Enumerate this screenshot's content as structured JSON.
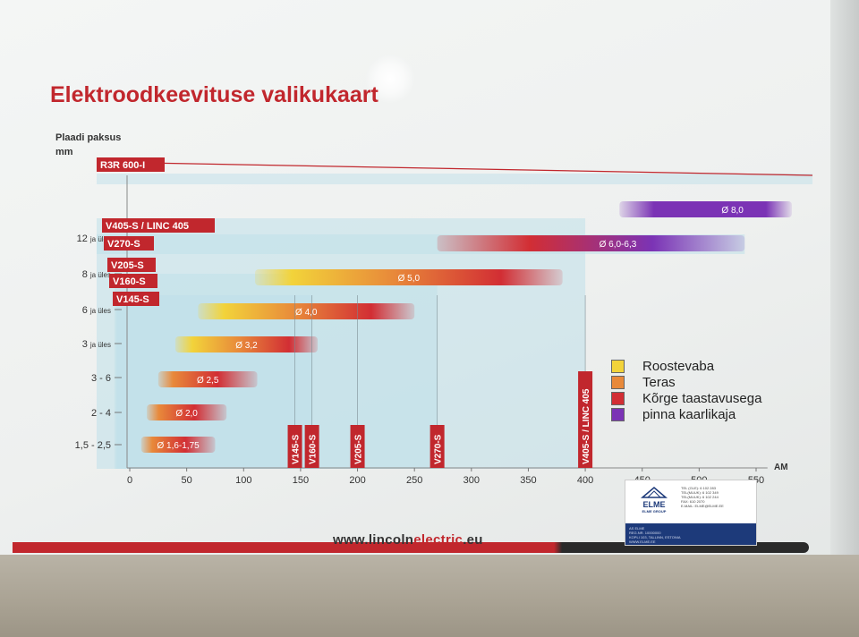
{
  "title": "Elektroodkeevituse valikukaart",
  "y_axis_label": [
    "Plaadi paksus",
    "mm"
  ],
  "url": {
    "prefix": "www.lincoln",
    "highlight": "electric",
    "suffix": ".eu"
  },
  "badge": {
    "brand": "ELME",
    "subtitle": "ELME GROUP",
    "contact_lines": [
      "TEL (GLE): 6 102 283",
      "TEL(MUUK): 6 102 349",
      "TEL(MUUK): 6 102 244",
      "FAX: 610 2070",
      "E-MAIL: ELME@ELME.EE"
    ],
    "footer_lines": [
      "AS ELME",
      "REG.NR. 10000000",
      "KOPLI 103, TALLINN, ESTONIA",
      "WWW.ELME.EE"
    ]
  },
  "colors": {
    "brand_red": "#c1272d",
    "roostevaba": "#f2d33a",
    "teras": "#e8893a",
    "korge": "#d22e34",
    "pinna": "#7b33b5",
    "band_blue": "#bfe0ea"
  },
  "chart_data": {
    "type": "bar",
    "title": "Elektroodkeevituse valikukaart",
    "xlabel": "AM",
    "ylabel": "Plaadi paksus mm",
    "xlim": [
      0,
      550
    ],
    "x_ticks": [
      0,
      50,
      100,
      150,
      200,
      250,
      300,
      350,
      400,
      450,
      500,
      550
    ],
    "categories": [
      "1,5 - 2,5",
      "2 - 4",
      "3 - 6",
      "3 ja üles",
      "6 ja üles",
      "8 ja üles",
      "12 ja üles"
    ],
    "category_main": [
      "1,5 - 2,5",
      "2 - 4",
      "3 - 6",
      "3",
      "6",
      "8",
      "12"
    ],
    "category_sub": [
      "",
      "",
      "",
      "ja üles",
      "ja üles",
      "ja üles",
      "ja üles"
    ],
    "legend": [
      {
        "key": "roostevaba",
        "label": "Roostevaba"
      },
      {
        "key": "teras",
        "label": "Teras"
      },
      {
        "key": "korge",
        "label": "Kõrge taastavusega"
      },
      {
        "key": "pinna",
        "label": "pinna kaarlikaja"
      }
    ],
    "electrode_bars": [
      {
        "label": "Ø 1,6-1,75",
        "start": 10,
        "end": 75
      },
      {
        "label": "Ø 2,0",
        "start": 15,
        "end": 85
      },
      {
        "label": "Ø 2,5",
        "start": 25,
        "end": 112
      },
      {
        "label": "Ø 3,2",
        "start": 40,
        "end": 165
      },
      {
        "label": "Ø 4,0",
        "start": 60,
        "end": 250
      },
      {
        "label": "Ø 5,0",
        "start": 110,
        "end": 380
      },
      {
        "label": "Ø 6,0-6,3",
        "start": 270,
        "end": 540
      },
      {
        "label": "Ø 8,0",
        "start": 430,
        "end": 600
      }
    ],
    "machines": [
      {
        "name": "R3R 600-I",
        "max_amps": 600
      },
      {
        "name": "V405-S / LINC 405",
        "max_amps": 400
      },
      {
        "name": "V270-S",
        "max_amps": 270
      },
      {
        "name": "V205-S",
        "max_amps": 200
      },
      {
        "name": "V160-S",
        "max_amps": 160
      },
      {
        "name": "V145-S",
        "max_amps": 145
      }
    ]
  }
}
